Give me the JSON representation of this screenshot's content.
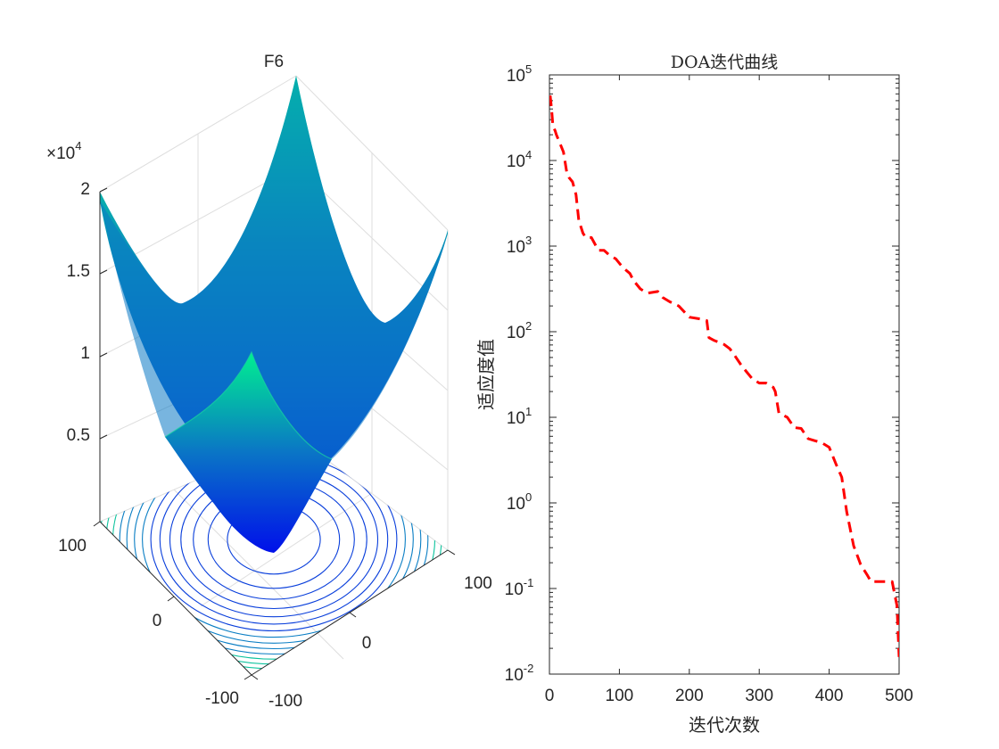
{
  "chart_data": [
    {
      "type": "surface3d",
      "title": "F6",
      "function": "sum of squares (sphere)",
      "x_range": [
        -100,
        100
      ],
      "y_range": [
        -100,
        100
      ],
      "z_range": [
        0,
        20000
      ],
      "z_multiplier_label": {
        "base": "×10",
        "exp": "4"
      },
      "x_ticks": [
        "-100",
        "0",
        "100"
      ],
      "y_ticks": [
        "-100",
        "0",
        "100"
      ],
      "z_ticks": [
        "0.5",
        "1",
        "1.5",
        "2"
      ],
      "z_tick_values": [
        5000,
        10000,
        15000,
        20000
      ],
      "contour_levels": 14,
      "colormap": [
        "#0000ff",
        "#0a86cc",
        "#00ff80"
      ]
    },
    {
      "type": "line",
      "title": "DOA迭代曲线",
      "xlabel": "迭代次数",
      "ylabel": "适应度值",
      "yscale": "log",
      "xlim": [
        0,
        500
      ],
      "ylim_exp": [
        -2,
        5
      ],
      "x_ticks": [
        "0",
        "100",
        "200",
        "300",
        "400",
        "500"
      ],
      "x_tick_values": [
        0,
        100,
        200,
        300,
        400,
        500
      ],
      "y_ticks": [
        {
          "base": "10",
          "exp": "-2",
          "value": -2
        },
        {
          "base": "10",
          "exp": "-1",
          "value": -1
        },
        {
          "base": "10",
          "exp": "0",
          "value": 0
        },
        {
          "base": "10",
          "exp": "1",
          "value": 1
        },
        {
          "base": "10",
          "exp": "2",
          "value": 2
        },
        {
          "base": "10",
          "exp": "3",
          "value": 3
        },
        {
          "base": "10",
          "exp": "4",
          "value": 4
        },
        {
          "base": "10",
          "exp": "5",
          "value": 5
        }
      ],
      "line_color": "#ff0000",
      "line_style": "dashed",
      "series": [
        {
          "name": "DOA",
          "x": [
            1,
            3,
            5,
            8,
            10,
            15,
            20,
            25,
            28,
            33,
            38,
            42,
            48,
            52,
            60,
            70,
            78,
            85,
            95,
            105,
            115,
            120,
            130,
            140,
            155,
            162,
            172,
            185,
            200,
            215,
            225,
            228,
            235,
            250,
            258,
            265,
            275,
            290,
            300,
            310,
            320,
            323,
            328,
            340,
            350,
            360,
            370,
            378,
            390,
            400,
            410,
            418,
            425,
            430,
            435,
            445,
            455,
            460,
            480,
            490,
            497,
            500
          ],
          "logy": [
            4.76,
            4.6,
            4.4,
            4.35,
            4.3,
            4.2,
            4.1,
            3.85,
            3.8,
            3.75,
            3.6,
            3.3,
            3.15,
            3.1,
            3.1,
            2.95,
            2.95,
            2.9,
            2.85,
            2.75,
            2.68,
            2.6,
            2.5,
            2.45,
            2.47,
            2.4,
            2.35,
            2.3,
            2.17,
            2.15,
            2.13,
            1.93,
            1.9,
            1.85,
            1.8,
            1.72,
            1.6,
            1.45,
            1.4,
            1.4,
            1.35,
            1.3,
            1.05,
            1.0,
            0.88,
            0.87,
            0.75,
            0.73,
            0.7,
            0.65,
            0.45,
            0.3,
            -0.1,
            -0.3,
            -0.5,
            -0.72,
            -0.85,
            -0.92,
            -0.92,
            -0.92,
            -1.2,
            -1.8
          ]
        }
      ]
    }
  ]
}
